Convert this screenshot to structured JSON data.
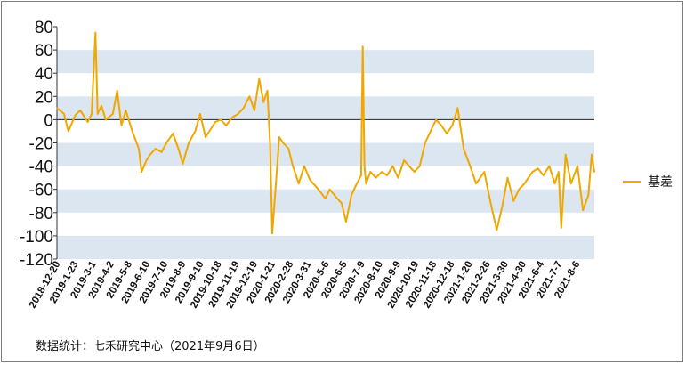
{
  "chart_data": {
    "type": "line",
    "title": "",
    "xlabel": "",
    "ylabel": "",
    "ylim": [
      -120,
      80
    ],
    "yticks": [
      80,
      60,
      40,
      20,
      0,
      -20,
      -40,
      -60,
      -80,
      -100,
      -120
    ],
    "band_color": "#dce6f1",
    "line_color": "#f0a800",
    "legend_position": "right",
    "x_tick_labels": [
      "2018-12-20",
      "2019-1-23",
      "2019-3-1",
      "2019-4-2",
      "2019-5-8",
      "2019-6-10",
      "2019-7-10",
      "2019-8-9",
      "2019-9-10",
      "2019-10-18",
      "2019-11-19",
      "2019-12-19",
      "2020-1-21",
      "2020-2-28",
      "2020-3-31",
      "2020-5-6",
      "2020-6-5",
      "2020-7-9",
      "2020-8-10",
      "2020-9-9",
      "2020-10-19",
      "2020-11-18",
      "2020-12-18",
      "2021-1-20",
      "2021-2-26",
      "2021-3-30",
      "2021-4-30",
      "2021-6-4",
      "2021-7-7",
      "2021-8-6"
    ],
    "series": [
      {
        "name": "基差",
        "x": [
          "2018-12-20",
          "2019-1-2",
          "2019-1-10",
          "2019-1-23",
          "2019-2-1",
          "2019-2-15",
          "2019-2-22",
          "2019-3-1",
          "2019-3-5",
          "2019-3-12",
          "2019-3-20",
          "2019-4-2",
          "2019-4-10",
          "2019-4-18",
          "2019-4-26",
          "2019-5-8",
          "2019-5-20",
          "2019-5-25",
          "2019-6-3",
          "2019-6-10",
          "2019-6-20",
          "2019-7-1",
          "2019-7-10",
          "2019-7-22",
          "2019-8-1",
          "2019-8-9",
          "2019-8-20",
          "2019-9-1",
          "2019-9-10",
          "2019-9-20",
          "2019-10-8",
          "2019-10-18",
          "2019-10-28",
          "2019-11-8",
          "2019-11-19",
          "2019-11-29",
          "2019-12-10",
          "2019-12-19",
          "2019-12-28",
          "2020-1-5",
          "2020-1-12",
          "2020-1-17",
          "2020-1-21",
          "2020-2-3",
          "2020-2-10",
          "2020-2-20",
          "2020-2-28",
          "2020-3-10",
          "2020-3-20",
          "2020-3-31",
          "2020-4-15",
          "2020-4-28",
          "2020-5-6",
          "2020-5-20",
          "2020-5-28",
          "2020-6-5",
          "2020-6-15",
          "2020-6-25",
          "2020-7-3",
          "2020-7-6",
          "2020-7-9",
          "2020-7-12",
          "2020-7-20",
          "2020-7-30",
          "2020-8-10",
          "2020-8-20",
          "2020-8-30",
          "2020-9-9",
          "2020-9-20",
          "2020-10-9",
          "2020-10-19",
          "2020-10-29",
          "2020-11-8",
          "2020-11-18",
          "2020-11-28",
          "2020-12-8",
          "2020-12-18",
          "2020-12-28",
          "2021-1-8",
          "2021-1-20",
          "2021-1-31",
          "2021-2-15",
          "2021-2-26",
          "2021-3-10",
          "2021-3-20",
          "2021-3-30",
          "2021-4-10",
          "2021-4-20",
          "2021-4-30",
          "2021-5-15",
          "2021-5-25",
          "2021-6-4",
          "2021-6-15",
          "2021-6-25",
          "2021-7-2",
          "2021-7-7",
          "2021-7-15",
          "2021-7-25",
          "2021-8-6",
          "2021-8-16",
          "2021-8-26",
          "2021-9-1",
          "2021-9-6"
        ],
        "values": [
          10,
          5,
          -10,
          4,
          8,
          -2,
          5,
          75,
          5,
          12,
          0,
          5,
          25,
          -5,
          8,
          -10,
          -25,
          -45,
          -35,
          -30,
          -25,
          -28,
          -20,
          -12,
          -25,
          -38,
          -20,
          -10,
          5,
          -15,
          -2,
          0,
          -5,
          2,
          5,
          10,
          20,
          8,
          35,
          15,
          25,
          -20,
          -98,
          -15,
          -20,
          -25,
          -40,
          -55,
          -40,
          -52,
          -60,
          -68,
          -60,
          -68,
          -72,
          -88,
          -65,
          -55,
          -48,
          63,
          -40,
          -55,
          -45,
          -50,
          -45,
          -48,
          -40,
          -50,
          -35,
          -45,
          -40,
          -20,
          -10,
          0,
          -5,
          -12,
          -5,
          10,
          -25,
          -40,
          -55,
          -45,
          -70,
          -95,
          -75,
          -50,
          -70,
          -60,
          -55,
          -45,
          -42,
          -48,
          -40,
          -55,
          -45,
          -93,
          -30,
          -55,
          -40,
          -78,
          -65,
          -30,
          -45
        ]
      }
    ]
  },
  "legend": {
    "label": "基差"
  },
  "source_note": "数据统计：七禾研究中心（2021年9月6日）"
}
